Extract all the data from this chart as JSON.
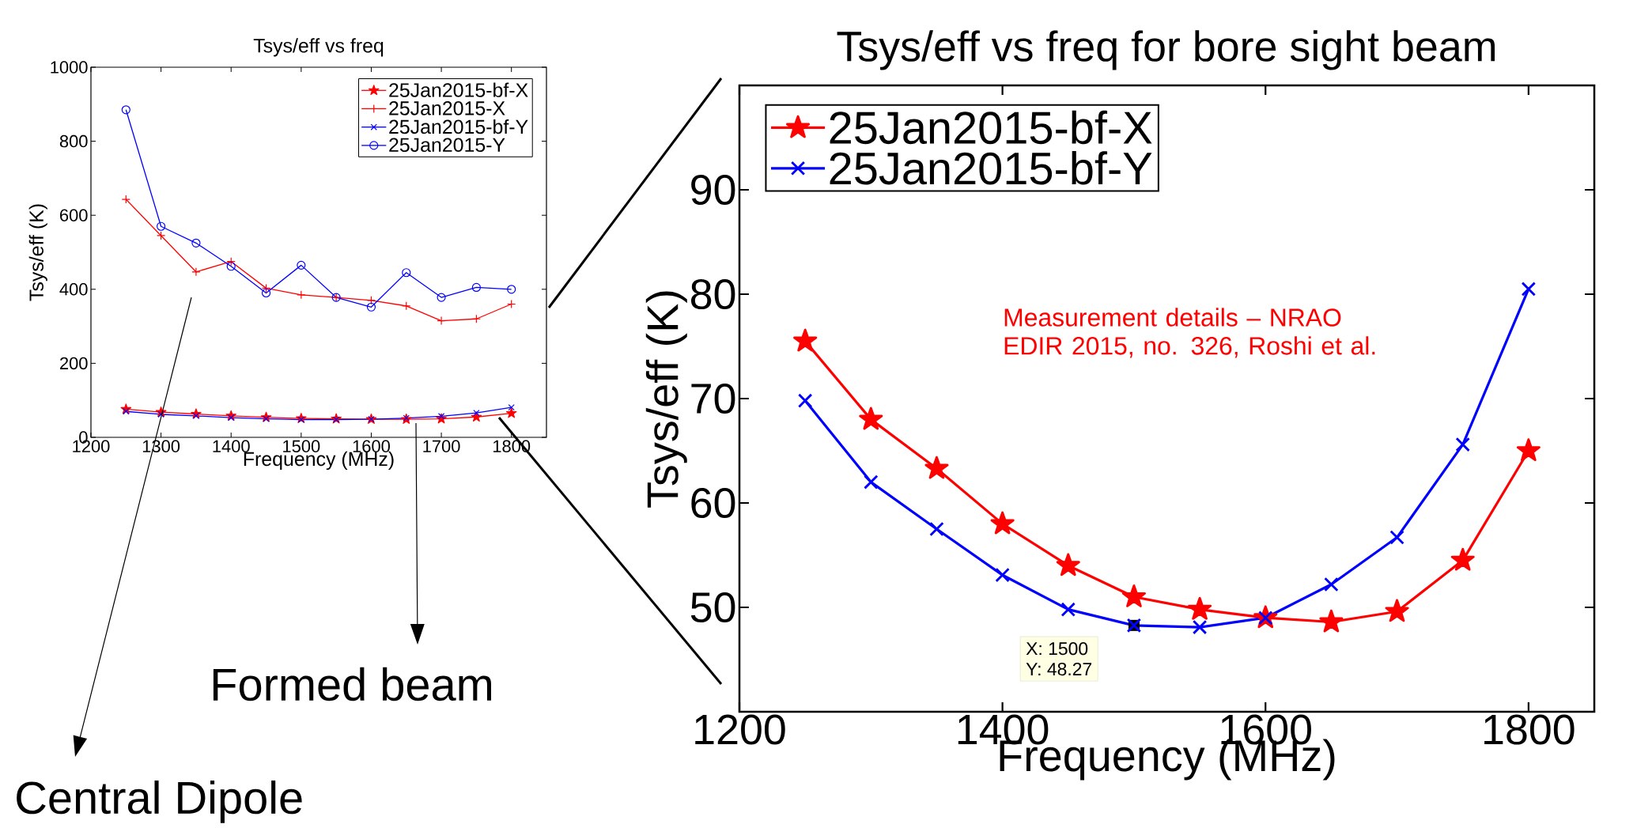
{
  "chart_data": [
    {
      "type": "line",
      "title": "Tsys/eff vs freq",
      "xlabel": "Frequency (MHz)",
      "ylabel": "Tsys/eff (K)",
      "x": [
        1250,
        1300,
        1350,
        1400,
        1450,
        1500,
        1550,
        1600,
        1650,
        1700,
        1750,
        1800
      ],
      "series": [
        {
          "name": "25Jan2015-bf-X",
          "color": "#ff0000",
          "marker": "star",
          "values": [
            76,
            68,
            63,
            58,
            54,
            51,
            50,
            49,
            49,
            50,
            55,
            65
          ]
        },
        {
          "name": "25Jan2015-X",
          "color": "#ff0000",
          "marker": "plus",
          "values": [
            643,
            545,
            447,
            475,
            403,
            385,
            378,
            370,
            355,
            315,
            320,
            360
          ]
        },
        {
          "name": "25Jan2015-bf-Y",
          "color": "#0000ff",
          "marker": "cross",
          "values": [
            70,
            62,
            58,
            53,
            50,
            48,
            48,
            49,
            52,
            57,
            66,
            81
          ]
        },
        {
          "name": "25Jan2015-Y",
          "color": "#0000ff",
          "marker": "circle",
          "values": [
            885,
            570,
            525,
            462,
            390,
            465,
            378,
            352,
            445,
            378,
            405,
            400
          ]
        }
      ],
      "xlim": [
        1200,
        1850
      ],
      "ylim": [
        0,
        1000
      ],
      "xticks": [
        1200,
        1300,
        1400,
        1500,
        1600,
        1700,
        1800
      ],
      "yticks": [
        0,
        200,
        400,
        600,
        800,
        1000
      ],
      "grid": false,
      "legend": "top right",
      "annotations": [
        "Formed beam",
        "Central Dipole"
      ]
    },
    {
      "type": "line",
      "title": "Tsys/eff vs freq for bore sight beam",
      "xlabel": "Frequency (MHz)",
      "ylabel": "Tsys/eff (K)",
      "x": [
        1250,
        1300,
        1350,
        1400,
        1450,
        1500,
        1550,
        1600,
        1650,
        1700,
        1750,
        1800
      ],
      "series": [
        {
          "name": "25Jan2015-bf-X",
          "color": "#ff0000",
          "marker": "star",
          "values": [
            75.5,
            68,
            63.3,
            58,
            54,
            51,
            49.8,
            49,
            48.6,
            49.6,
            54.5,
            65
          ]
        },
        {
          "name": "25Jan2015-bf-Y",
          "color": "#0000ff",
          "marker": "cross",
          "values": [
            69.8,
            62,
            57.5,
            53.1,
            49.8,
            48.27,
            48.1,
            49,
            52.2,
            56.7,
            65.6,
            80.5
          ]
        }
      ],
      "xlim": [
        1200,
        1850
      ],
      "ylim": [
        40,
        100
      ],
      "xticks": [
        1200,
        1400,
        1600,
        1800
      ],
      "yticks": [
        50,
        60,
        70,
        80,
        90
      ],
      "grid": false,
      "legend": "top left",
      "annotations": [
        "Measurement details – NRAO EDIR 2015, no. 326, Roshi et al.",
        {
          "text": "X: 1500",
          "x": 1500,
          "y": 48.27
        },
        "Y: 48.27"
      ]
    }
  ]
}
